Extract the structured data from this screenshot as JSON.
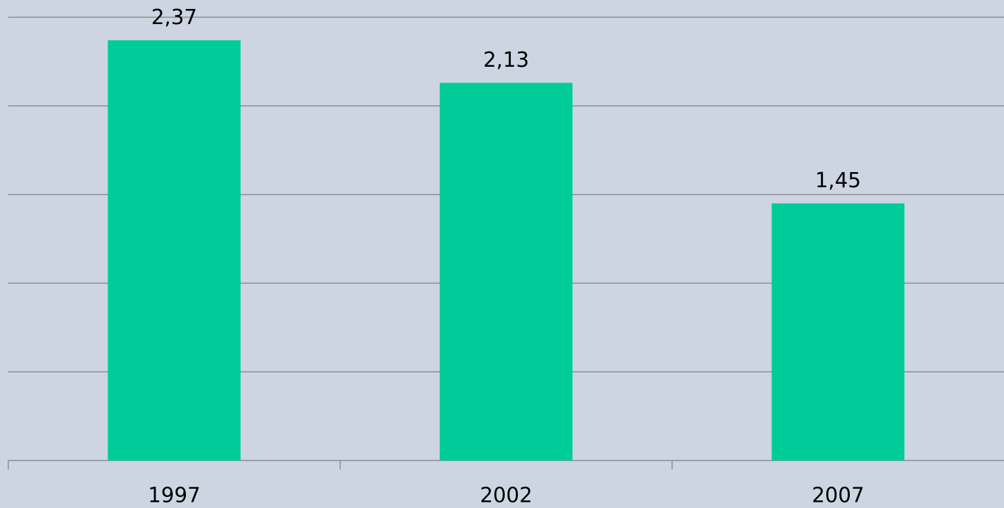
{
  "chart_data": {
    "type": "bar",
    "categories": [
      "1997",
      "2002",
      "2007"
    ],
    "values": [
      2.37,
      2.13,
      1.45
    ],
    "value_labels": [
      "2,37",
      "2,13",
      "1,45"
    ],
    "color": "#00cc99",
    "ylim": [
      0,
      2.5
    ],
    "yticks": [
      0,
      0.5,
      1,
      1.5,
      2,
      2.5
    ],
    "grid": true
  }
}
